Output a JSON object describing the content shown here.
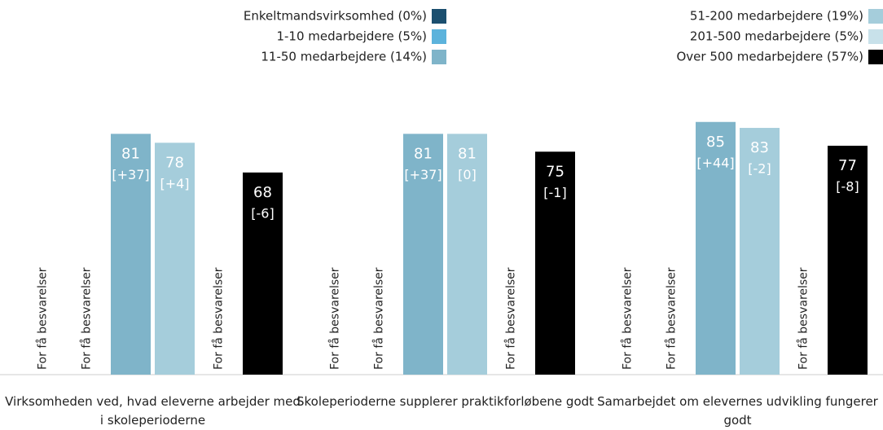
{
  "chart_data": {
    "type": "bar",
    "categories": [
      "Virksomheden ved, hvad eleverne arbejder med i skoleperioderne",
      "Skoleperioderne supplerer praktikforløbene godt",
      "Samarbejdet om elevernes udvikling fungerer godt"
    ],
    "no_data_label": "For få besvarelser",
    "ylim": [
      0,
      100
    ],
    "series": [
      {
        "name": "Enkeltmandsvirksomhed (0%)",
        "color": "#1b4f6f",
        "values": [
          null,
          null,
          null
        ]
      },
      {
        "name": "1-10 medarbejdere (5%)",
        "color": "#5cb3dc",
        "values": [
          null,
          null,
          null
        ]
      },
      {
        "name": "11-50 medarbejdere (14%)",
        "color": "#7fb4c9",
        "values": [
          81,
          81,
          85
        ],
        "change_labels": [
          "[+37]",
          "[+37]",
          "[+44]"
        ]
      },
      {
        "name": "51-200 medarbejdere (19%)",
        "color": "#a5cddb",
        "values": [
          78,
          81,
          83
        ],
        "change_labels": [
          "[+4]",
          "[0]",
          "[-2]"
        ]
      },
      {
        "name": "201-500 medarbejdere (5%)",
        "color": "#c8e1ea",
        "values": [
          null,
          null,
          null
        ]
      },
      {
        "name": "Over 500 medarbejdere (57%)",
        "color": "#000000",
        "values": [
          68,
          75,
          77
        ],
        "change_labels": [
          "[-6]",
          "[-1]",
          "[-8]"
        ]
      }
    ]
  }
}
